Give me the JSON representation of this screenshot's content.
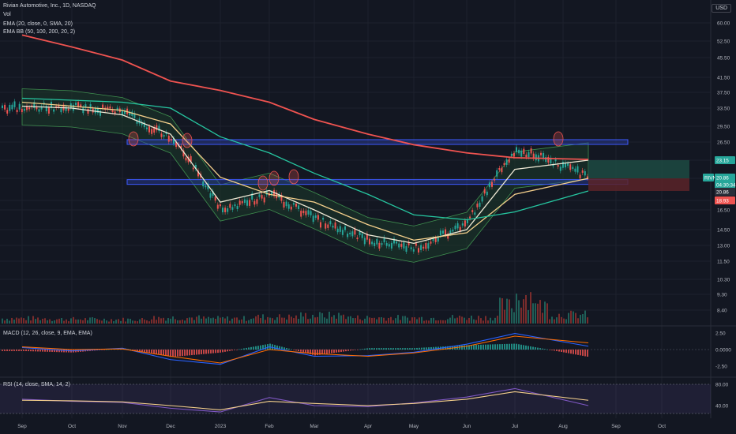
{
  "header": {
    "symbol_line": "Rivian Automotive, Inc., 1D, NASDAQ",
    "vol_label": "Vol",
    "ema20_label": "EMA (20, close, 0, SMA, 20)",
    "ema_multi_label": "EMA BB (50, 100, 200, 20, 2)",
    "currency": "USD"
  },
  "chart_data": [
    {
      "type": "line",
      "title": "Rivian Automotive, Inc., 1D, NASDAQ",
      "y_axis_ticks": [
        "60.00",
        "52.50",
        "45.50",
        "41.50",
        "37.50",
        "33.50",
        "29.50",
        "26.50",
        "23.15",
        "20.86",
        "18.93",
        "16.50",
        "14.50",
        "13.00",
        "11.50",
        "10.30",
        "9.30",
        "8.40"
      ],
      "x_axis_ticks": [
        "Sep",
        "Oct",
        "Nov",
        "Dec",
        "2023",
        "Feb",
        "Mar",
        "Apr",
        "May",
        "Jun",
        "Jul",
        "Aug",
        "Sep",
        "Oct"
      ],
      "price_badges": [
        {
          "text": "RIVN",
          "value": "20.86",
          "color": "#26a69a"
        },
        {
          "text": "04:30:34",
          "color": "#26a69a"
        },
        {
          "text": "23.15",
          "color": "#26a69a"
        },
        {
          "text": "20.86",
          "color": "#2a2e39"
        },
        {
          "text": "18.93",
          "color": "#ef5350"
        }
      ],
      "series": [
        {
          "name": "Price",
          "kind": "candles",
          "x": [
            "Sep",
            "Oct",
            "Nov",
            "Dec",
            "2023",
            "Feb",
            "Mar",
            "Apr",
            "May",
            "Jun",
            "Jul",
            "Aug"
          ],
          "values": [
            33.5,
            34.0,
            32.5,
            27.0,
            16.5,
            18.5,
            15.5,
            13.5,
            12.7,
            15.0,
            25.0,
            21.0
          ]
        },
        {
          "name": "EMA 20",
          "color": "#f0ead6",
          "values": [
            34.0,
            33.5,
            32.0,
            28.0,
            17.5,
            19.0,
            16.5,
            14.0,
            13.2,
            14.5,
            22.0,
            23.15
          ]
        },
        {
          "name": "EMA 50",
          "color": "#f5d08c",
          "values": [
            35.0,
            34.0,
            33.0,
            30.0,
            21.0,
            18.5,
            17.5,
            15.0,
            13.5,
            14.2,
            18.5,
            20.86
          ]
        },
        {
          "name": "EMA 100",
          "color": "#26c6a0",
          "values": [
            36.0,
            35.5,
            35.0,
            33.5,
            27.5,
            24.5,
            21.5,
            18.5,
            16.0,
            15.5,
            16.3,
            18.93
          ]
        },
        {
          "name": "EMA 200",
          "color": "#ef5350",
          "values": [
            55.0,
            50.0,
            45.0,
            40.5,
            38.0,
            35.0,
            31.0,
            28.0,
            26.0,
            24.5,
            23.6,
            23.3
          ]
        }
      ],
      "horizontal_zones": [
        26.5,
        20.3
      ],
      "risk_reward_box": {
        "target": 23.15,
        "entry": 20.86,
        "stop": 18.93
      },
      "grid": true
    },
    {
      "type": "bar",
      "title": "Vol",
      "categories": [
        "Sep",
        "Oct",
        "Nov",
        "Dec",
        "2023",
        "Feb",
        "Mar",
        "Apr",
        "May",
        "Jun",
        "Jul",
        "Aug"
      ],
      "values": [
        35,
        30,
        28,
        40,
        35,
        45,
        55,
        40,
        38,
        42,
        120,
        60
      ]
    },
    {
      "type": "line",
      "title": "MACD (12, 26, close, 9, EMA, EMA)",
      "y_axis_ticks": [
        "2.50",
        "0.0000",
        "-2.50"
      ],
      "series": [
        {
          "name": "MACD",
          "color": "#2962ff",
          "values": [
            0.3,
            -0.2,
            0.2,
            -1.5,
            -2.2,
            0.4,
            -1.0,
            -0.9,
            -0.4,
            0.8,
            2.4,
            0.5
          ]
        },
        {
          "name": "Signal",
          "color": "#ff6d00",
          "values": [
            0.4,
            0.0,
            0.1,
            -1.0,
            -2.0,
            0.0,
            -0.6,
            -1.0,
            -0.5,
            0.5,
            2.0,
            1.0
          ]
        }
      ]
    },
    {
      "type": "line",
      "title": "RSI (14, close, SMA, 14, 2)",
      "y_axis_ticks": [
        "80.00",
        "40.00"
      ],
      "series": [
        {
          "name": "RSI",
          "color": "#7e57c2",
          "values": [
            52,
            48,
            46,
            35,
            28,
            55,
            40,
            38,
            45,
            56,
            72,
            40
          ]
        },
        {
          "name": "RSI SMA",
          "color": "#f5d08c",
          "values": [
            50,
            49,
            47,
            40,
            32,
            48,
            44,
            40,
            44,
            52,
            66,
            50
          ]
        }
      ]
    }
  ]
}
